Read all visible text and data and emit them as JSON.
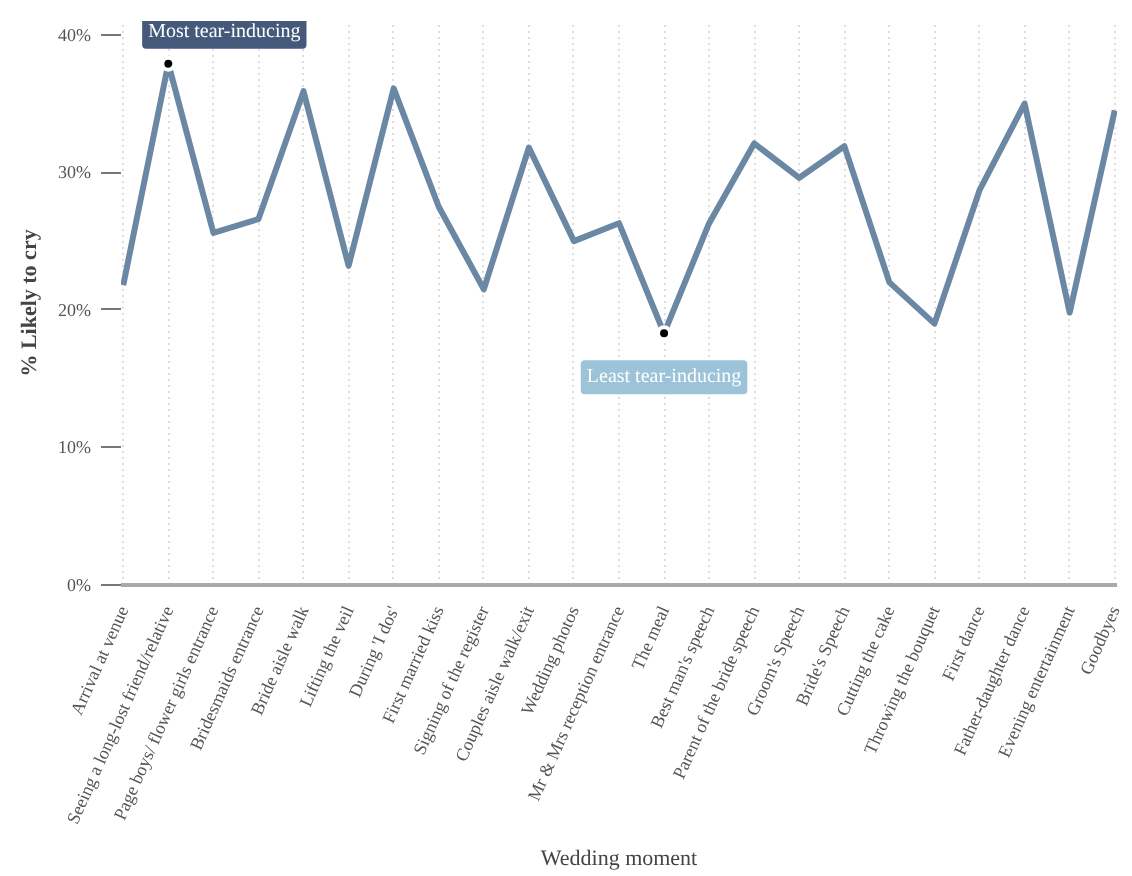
{
  "chart_data": {
    "type": "line",
    "xlabel": "Wedding moment",
    "ylabel": "% Likely to cry",
    "categories": [
      "Arrival at venue",
      "Seeing a long-lost friend/relative",
      "Page boys/ flower girls entrance",
      "Bridesmaids entrance",
      "Bride aisle walk",
      "Lifting the veil",
      "During 'I dos'",
      "First married kiss",
      "Signing of the register",
      "Couples aisle walk/exit",
      "Wedding photos",
      "Mr & Mrs reception entrance",
      "The meal",
      "Best man's speech",
      "Parent of the bride speech",
      "Groom's Speech",
      "Bride's Speech",
      "Cutting the cake",
      "Throwing the bouquet",
      "First dance",
      "Father-daughter dance",
      "Evening entertainment",
      "Goodbyes"
    ],
    "series": [
      {
        "color": "#6a87a3",
        "values": [
          21.8,
          37.9,
          25.6,
          26.6,
          35.9,
          23.2,
          36.1,
          27.5,
          21.5,
          31.8,
          25.0,
          26.3,
          18.3,
          26.3,
          32.1,
          29.6,
          31.9,
          22.0,
          19.0,
          28.7,
          35.0,
          19.8,
          34.5
        ]
      }
    ],
    "ylim": [
      0,
      41
    ],
    "yticks": [
      {
        "value": 0,
        "label": "0%"
      },
      {
        "value": 10,
        "label": "10%"
      },
      {
        "value": 20,
        "label": "20%"
      },
      {
        "value": 30,
        "label": "30%"
      },
      {
        "value": 40,
        "label": "40%"
      }
    ],
    "grid": "x",
    "annotations": [
      {
        "text": "Most tear-inducing",
        "x": "Seeing a long-lost friend/relative",
        "y": 37.9
      },
      {
        "text": "Least tear-inducing",
        "x": "The meal",
        "y": 18.3
      }
    ]
  }
}
